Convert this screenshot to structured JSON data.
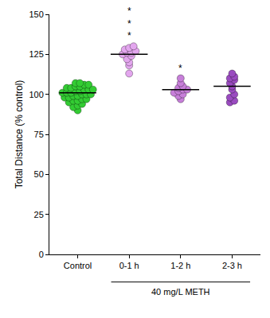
{
  "chart_data": {
    "type": "scatter",
    "y_label": "Total Distance (% control)",
    "categories": [
      "Control",
      "0-1 h",
      "1-2 h",
      "2-3 h"
    ],
    "colors": [
      "#33cc33",
      "#e3a6ee",
      "#c77fd9",
      "#9a4bc0"
    ],
    "values": [
      [
        90,
        92,
        93,
        94,
        95,
        96,
        96,
        97,
        97,
        98,
        98,
        99,
        99,
        100,
        100,
        100,
        101,
        101,
        101,
        102,
        102,
        103,
        103,
        104,
        104,
        105,
        105,
        106,
        106,
        107,
        107,
        103
      ],
      [
        113,
        118,
        120,
        122,
        124,
        125,
        126,
        126,
        127,
        128,
        129,
        130
      ],
      [
        97,
        99,
        100,
        101,
        102,
        103,
        103,
        104,
        105,
        107,
        110
      ],
      [
        95,
        96,
        98,
        100,
        103,
        105,
        107,
        109,
        110,
        111,
        113
      ]
    ],
    "means": [
      101,
      125,
      103,
      105
    ],
    "annotations": [
      {
        "category": "0-1 h",
        "text": "***"
      },
      {
        "category": "1-2 h",
        "text": "*"
      }
    ],
    "group_label": {
      "text": "40 mg/L METH",
      "categories": [
        "0-1 h",
        "1-2 h",
        "2-3 h"
      ]
    },
    "ylim": [
      0,
      150
    ],
    "yticks": [
      0,
      25,
      50,
      75,
      100,
      125,
      150
    ],
    "grid": false
  }
}
